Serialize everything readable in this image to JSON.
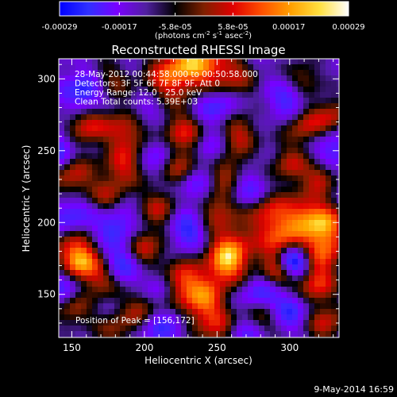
{
  "chart_data": {
    "type": "heatmap",
    "title": "Reconstructed RHESSI Image",
    "xlabel": "Heliocentric X (arcsec)",
    "ylabel": "Heliocentric Y (arcsec)",
    "xlim": [
      141,
      334
    ],
    "ylim": [
      120,
      314
    ],
    "x_ticks": [
      "150",
      "200",
      "250",
      "300"
    ],
    "x_tick_values": [
      150,
      200,
      250,
      300
    ],
    "y_ticks": [
      "150",
      "200",
      "250",
      "300"
    ],
    "y_tick_values": [
      150,
      200,
      250,
      300
    ],
    "colorbar": {
      "range": [
        -0.00029,
        0.00029
      ],
      "tick_labels": [
        "-0.00029",
        "-0.00017",
        "-5.8e-05",
        "5.8e-05",
        "0.00017",
        "0.00029"
      ],
      "tick_values": [
        -0.00029,
        -0.00017,
        -5.8e-05,
        5.8e-05,
        0.00017,
        0.00029
      ],
      "unit_main": "(photons cm",
      "unit_exp1": "-2",
      "unit_mid": " s",
      "unit_exp2": "-1",
      "unit_post": " asec",
      "unit_exp3": "-2",
      "unit_end": ")",
      "colors": [
        "#0000ff",
        "#3030ff",
        "#7a00ff",
        "#5020a0",
        "#000000",
        "#802000",
        "#e00000",
        "#ff5000",
        "#ffa000",
        "#ffe040",
        "#ffffff"
      ]
    },
    "annotations": [
      "28-May-2012 00:44:58.000 to 00:50:58.000",
      "Detectors: 3F 5F 6F 7F 8F 9F, Att 0",
      "Energy Range: 12.0 - 25.0 keV",
      "Clean     Total counts: 5.39E+03"
    ],
    "peak_label": "Position of Peak = [156,172]",
    "peak": [
      156,
      172
    ],
    "footer_date": "9-May-2014 16:59"
  }
}
